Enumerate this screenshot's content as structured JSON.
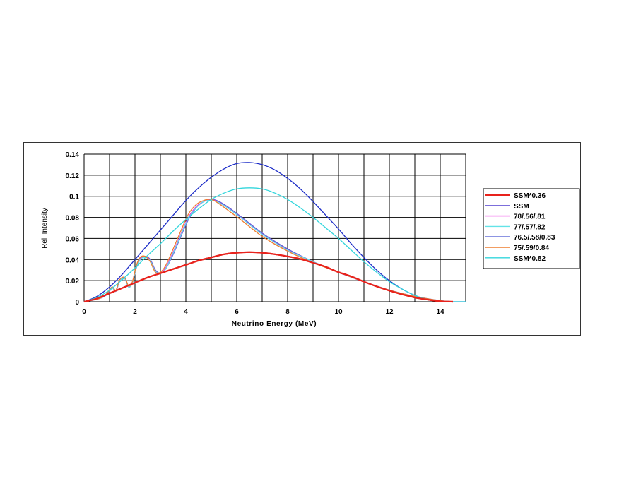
{
  "chart_data": {
    "type": "line",
    "title": "",
    "xlabel": "Neutrino Energy (MeV)",
    "ylabel": "Rel. Intensity",
    "xlim": [
      0,
      15
    ],
    "ylim": [
      0,
      0.14
    ],
    "x_ticks": [
      "0",
      "2",
      "4",
      "6",
      "8",
      "10",
      "12",
      "14"
    ],
    "y_ticks": [
      "0",
      "0.02",
      "0.04",
      "0.06",
      "0.08",
      "0.1",
      "0.12",
      "0.14"
    ],
    "grid": true,
    "legend_position": "right",
    "series": [
      {
        "name": "SSM*0.36",
        "color": "#e8221c",
        "x": [
          0,
          0.5,
          1,
          1.5,
          2,
          2.5,
          3,
          3.5,
          4,
          4.5,
          5,
          5.5,
          6,
          6.5,
          7,
          7.5,
          8,
          8.5,
          9,
          9.5,
          10,
          10.5,
          11,
          11.5,
          12,
          12.5,
          13,
          13.5,
          14,
          14.5
        ],
        "y": [
          0,
          0.003,
          0.008,
          0.013,
          0.018,
          0.023,
          0.027,
          0.031,
          0.035,
          0.039,
          0.042,
          0.045,
          0.0465,
          0.047,
          0.0465,
          0.045,
          0.043,
          0.0405,
          0.037,
          0.033,
          0.028,
          0.024,
          0.019,
          0.0145,
          0.0105,
          0.007,
          0.004,
          0.002,
          0.0005,
          0
        ]
      },
      {
        "name": "SSM",
        "color": "#6a5ad6",
        "x": [
          0,
          0.6,
          0.9,
          1.1,
          1.25,
          1.4,
          1.6,
          1.75,
          1.9,
          2.05,
          2.2,
          2.4,
          2.6,
          2.8,
          3.0,
          3.2,
          3.5,
          3.8,
          4.1,
          4.4,
          4.7,
          5.0,
          5.3,
          5.7,
          6.2,
          7.0,
          8.0,
          9.0,
          10.0,
          11.0,
          12.0,
          13.0,
          14.0,
          14.5
        ],
        "y": [
          0,
          0.003,
          0.007,
          0.013,
          0.01,
          0.02,
          0.022,
          0.014,
          0.018,
          0.032,
          0.04,
          0.043,
          0.04,
          0.03,
          0.027,
          0.031,
          0.045,
          0.062,
          0.078,
          0.089,
          0.095,
          0.097,
          0.095,
          0.089,
          0.08,
          0.065,
          0.05,
          0.038,
          0.028,
          0.019,
          0.011,
          0.005,
          0.001,
          0
        ]
      },
      {
        "name": "78/.56/.81",
        "color": "#ee2ee6",
        "x": [
          0,
          0.6,
          0.9,
          1.1,
          1.25,
          1.4,
          1.6,
          1.75,
          1.9,
          2.05,
          2.2,
          2.4,
          2.6,
          2.8,
          3.0,
          3.2,
          3.5,
          3.8,
          4.1,
          4.4,
          4.7,
          5.0,
          5.3,
          5.7,
          6.2,
          7.0,
          8.0,
          9.0,
          10.0,
          11.0,
          12.0,
          13.0,
          14.0,
          14.5
        ],
        "y": [
          0,
          0.003,
          0.008,
          0.014,
          0.01,
          0.021,
          0.022,
          0.015,
          0.019,
          0.033,
          0.041,
          0.043,
          0.039,
          0.029,
          0.027,
          0.032,
          0.047,
          0.064,
          0.08,
          0.09,
          0.095,
          0.097,
          0.094,
          0.088,
          0.079,
          0.064,
          0.049,
          0.038,
          0.028,
          0.019,
          0.011,
          0.005,
          0.001,
          0
        ]
      },
      {
        "name": "77/.57/.82",
        "color": "#63e3e8",
        "x": [
          0,
          0.6,
          0.9,
          1.1,
          1.25,
          1.4,
          1.6,
          1.75,
          1.9,
          2.05,
          2.2,
          2.4,
          2.6,
          2.8,
          3.0,
          3.2,
          3.5,
          3.8,
          4.1,
          4.4,
          4.7,
          5.0,
          5.3,
          5.7,
          6.2,
          7.0,
          8.0,
          9.0,
          10.0,
          11.0,
          12.0,
          13.0,
          14.0,
          14.5
        ],
        "y": [
          0,
          0.003,
          0.008,
          0.013,
          0.01,
          0.02,
          0.022,
          0.014,
          0.018,
          0.032,
          0.04,
          0.042,
          0.039,
          0.029,
          0.027,
          0.031,
          0.046,
          0.063,
          0.079,
          0.089,
          0.095,
          0.096,
          0.094,
          0.088,
          0.079,
          0.064,
          0.049,
          0.038,
          0.028,
          0.019,
          0.011,
          0.005,
          0.001,
          0
        ]
      },
      {
        "name": "76.5/.58/0.83",
        "color": "#1b2bc7",
        "x": [
          0,
          0.5,
          1,
          1.5,
          2,
          2.5,
          3,
          3.5,
          4,
          4.5,
          5,
          5.5,
          6,
          6.5,
          7,
          7.5,
          8,
          8.5,
          9,
          9.5,
          10,
          10.5,
          11,
          11.5,
          12,
          12.5,
          13,
          13.5,
          14,
          14.5,
          15
        ],
        "y": [
          0,
          0.005,
          0.014,
          0.026,
          0.04,
          0.054,
          0.068,
          0.082,
          0.096,
          0.108,
          0.118,
          0.126,
          0.131,
          0.132,
          0.13,
          0.125,
          0.117,
          0.107,
          0.095,
          0.082,
          0.069,
          0.055,
          0.042,
          0.03,
          0.02,
          0.012,
          0.006,
          0.002,
          0.0005,
          0,
          0
        ]
      },
      {
        "name": "75/.59/0.84",
        "color": "#ee7d2e",
        "x": [
          0,
          0.6,
          0.9,
          1.1,
          1.25,
          1.4,
          1.6,
          1.75,
          1.9,
          2.05,
          2.2,
          2.4,
          2.6,
          2.8,
          3.0,
          3.2,
          3.5,
          3.8,
          4.1,
          4.4,
          4.7,
          5.0,
          5.3,
          5.7,
          6.2,
          7.0,
          8.0,
          9.0,
          10.0,
          11.0,
          12.0,
          13.0,
          14.0,
          14.5
        ],
        "y": [
          0,
          0.003,
          0.008,
          0.014,
          0.011,
          0.021,
          0.023,
          0.015,
          0.019,
          0.034,
          0.042,
          0.043,
          0.038,
          0.028,
          0.028,
          0.034,
          0.05,
          0.067,
          0.083,
          0.092,
          0.096,
          0.097,
          0.093,
          0.086,
          0.077,
          0.062,
          0.048,
          0.037,
          0.028,
          0.019,
          0.011,
          0.005,
          0.001,
          0
        ]
      },
      {
        "name": "SSM*0.82",
        "color": "#33d6dc",
        "x": [
          0,
          0.5,
          1,
          1.5,
          2,
          2.5,
          3,
          3.5,
          4,
          4.5,
          5,
          5.5,
          6,
          6.5,
          7,
          7.5,
          8,
          8.5,
          9,
          9.5,
          10,
          10.5,
          11,
          11.5,
          12,
          12.5,
          13,
          13.5,
          14,
          14.5,
          15
        ],
        "y": [
          0,
          0.004,
          0.011,
          0.021,
          0.032,
          0.044,
          0.055,
          0.067,
          0.078,
          0.088,
          0.097,
          0.103,
          0.107,
          0.108,
          0.107,
          0.103,
          0.097,
          0.089,
          0.08,
          0.07,
          0.06,
          0.049,
          0.038,
          0.028,
          0.019,
          0.012,
          0.006,
          0.002,
          0.0005,
          0,
          0
        ]
      }
    ]
  }
}
